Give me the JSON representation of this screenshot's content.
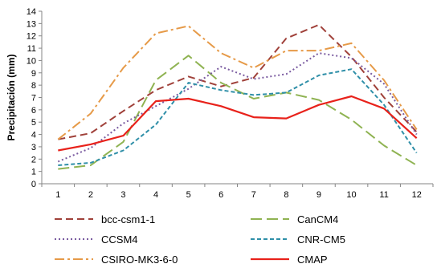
{
  "chart_data": {
    "type": "line",
    "title": "",
    "xlabel": "",
    "ylabel": "Precipitación (mm)",
    "x": [
      1,
      2,
      3,
      4,
      5,
      6,
      7,
      8,
      9,
      10,
      11,
      12
    ],
    "ylim": [
      0,
      14
    ],
    "yticks": [
      0,
      1,
      2,
      3,
      4,
      5,
      6,
      7,
      8,
      9,
      10,
      11,
      12,
      13,
      14
    ],
    "grid": false,
    "legend": "bottom",
    "series": [
      {
        "name": "bcc-csm1-1",
        "color": "#A0413A",
        "dash": "dash",
        "values": [
          3.6,
          4.1,
          5.9,
          7.6,
          8.7,
          7.9,
          8.6,
          11.8,
          12.9,
          10.3,
          7.0,
          4.2
        ]
      },
      {
        "name": "CanCM4",
        "color": "#8FB352",
        "dash": "longdash",
        "values": [
          1.2,
          1.5,
          3.4,
          8.4,
          10.4,
          8.2,
          6.9,
          7.4,
          6.8,
          5.2,
          3.1,
          1.5
        ]
      },
      {
        "name": "CCSM4",
        "color": "#7A5BA0",
        "dash": "dot",
        "values": [
          1.8,
          2.9,
          4.9,
          6.3,
          7.7,
          9.5,
          8.5,
          8.9,
          10.6,
          10.2,
          8.1,
          4.0
        ]
      },
      {
        "name": "CNR-CM5",
        "color": "#2F8FA8",
        "dash": "shortdash",
        "values": [
          1.5,
          1.7,
          2.7,
          4.8,
          8.2,
          7.6,
          7.2,
          7.4,
          8.8,
          9.3,
          6.4,
          2.5
        ]
      },
      {
        "name": "CSIRO-MK3-6-0",
        "color": "#E69A48",
        "dash": "dashdot",
        "values": [
          3.6,
          5.7,
          9.4,
          12.2,
          12.8,
          10.6,
          9.4,
          10.8,
          10.8,
          11.4,
          8.4,
          4.4
        ]
      },
      {
        "name": "CMAP",
        "color": "#E8221B",
        "dash": "solid",
        "values": [
          2.7,
          3.2,
          3.9,
          6.7,
          6.9,
          6.3,
          5.4,
          5.3,
          6.4,
          7.1,
          6.1,
          3.7
        ]
      }
    ]
  }
}
